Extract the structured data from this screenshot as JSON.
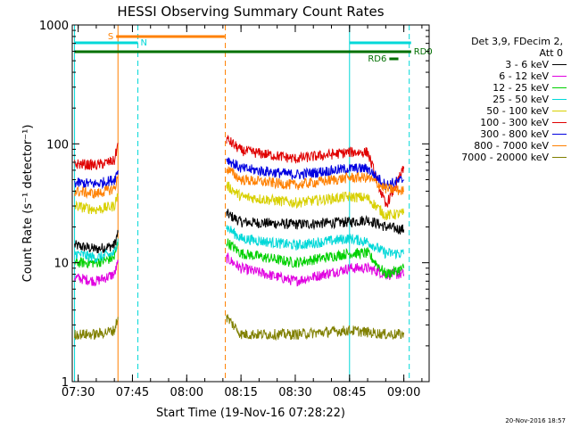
{
  "chart_data": {
    "type": "line",
    "title": "HESSI Observing Summary Count Rates",
    "xlabel": "Start Time (19-Nov-16 07:28:22)",
    "ylabel": "Count Rate (s⁻¹ detector⁻¹)",
    "y_scale": "log",
    "xlim": [
      "07:28:22",
      "09:07:00"
    ],
    "ylim": [
      1,
      1000
    ],
    "x_ticks": [
      "07:30",
      "07:45",
      "08:00",
      "08:15",
      "08:30",
      "08:45",
      "09:00"
    ],
    "y_ticks": [
      "1",
      "10",
      "100",
      "1000"
    ],
    "legend": {
      "header": [
        "Det 3,9, FDecim 2,",
        "Att 0"
      ],
      "placement": "right"
    },
    "series": [
      {
        "name": "3 - 6 keV",
        "color": "#000000",
        "segments": [
          {
            "x": [
              "07:29",
              "07:35",
              "07:40",
              "07:41"
            ],
            "y": [
              14,
              13,
              14,
              18
            ]
          },
          {
            "x": [
              "08:11",
              "08:15",
              "08:30",
              "08:45",
              "08:50",
              "08:55",
              "09:00"
            ],
            "y": [
              26,
              22,
              21,
              22,
              23,
              20,
              19
            ]
          }
        ]
      },
      {
        "name": "6 - 12 keV",
        "color": "#e000e0",
        "segments": [
          {
            "x": [
              "07:29",
              "07:35",
              "07:40",
              "07:41"
            ],
            "y": [
              7.5,
              7,
              8,
              10
            ]
          },
          {
            "x": [
              "08:11",
              "08:15",
              "08:30",
              "08:45",
              "08:50",
              "08:55",
              "09:00"
            ],
            "y": [
              11,
              9,
              7,
              9,
              9,
              8,
              8
            ]
          }
        ]
      },
      {
        "name": "12 - 25 keV",
        "color": "#00d000",
        "segments": [
          {
            "x": [
              "07:29",
              "07:35",
              "07:40",
              "07:41"
            ],
            "y": [
              10,
              10,
              11,
              15
            ]
          },
          {
            "x": [
              "08:11",
              "08:15",
              "08:30",
              "08:45",
              "08:50",
              "08:55",
              "09:00"
            ],
            "y": [
              15,
              12,
              10,
              12,
              12,
              8,
              9
            ]
          }
        ]
      },
      {
        "name": "25 - 50 keV",
        "color": "#00d8d8",
        "segments": [
          {
            "x": [
              "07:29",
              "07:35",
              "07:40",
              "07:41"
            ],
            "y": [
              12,
              11,
              12,
              16
            ]
          },
          {
            "x": [
              "08:11",
              "08:15",
              "08:30",
              "08:45",
              "08:50",
              "08:55",
              "09:00"
            ],
            "y": [
              20,
              16,
              14,
              16,
              15,
              12,
              12
            ]
          }
        ]
      },
      {
        "name": "50 - 100 keV",
        "color": "#d8d000",
        "segments": [
          {
            "x": [
              "07:29",
              "07:35",
              "07:40",
              "07:41"
            ],
            "y": [
              30,
              28,
              30,
              38
            ]
          },
          {
            "x": [
              "08:11",
              "08:15",
              "08:30",
              "08:45",
              "08:50",
              "08:55",
              "09:00"
            ],
            "y": [
              45,
              36,
              32,
              36,
              35,
              25,
              26
            ]
          }
        ]
      },
      {
        "name": "100 - 300 keV",
        "color": "#e00000",
        "segments": [
          {
            "x": [
              "07:29",
              "07:35",
              "07:40",
              "07:41"
            ],
            "y": [
              68,
              66,
              72,
              100
            ]
          },
          {
            "x": [
              "08:11",
              "08:15",
              "08:30",
              "08:45",
              "08:50",
              "08:55",
              "09:00"
            ],
            "y": [
              110,
              88,
              75,
              85,
              85,
              30,
              62
            ]
          }
        ]
      },
      {
        "name": "300 - 800 keV",
        "color": "#0000e0",
        "segments": [
          {
            "x": [
              "07:29",
              "07:35",
              "07:40",
              "07:41"
            ],
            "y": [
              47,
              46,
              50,
              60
            ]
          },
          {
            "x": [
              "08:11",
              "08:15",
              "08:30",
              "08:45",
              "08:50",
              "08:55",
              "09:00"
            ],
            "y": [
              75,
              62,
              55,
              62,
              62,
              45,
              50
            ]
          }
        ]
      },
      {
        "name": "800 - 7000 keV",
        "color": "#ff8000",
        "segments": [
          {
            "x": [
              "07:29",
              "07:35",
              "07:40",
              "07:41"
            ],
            "y": [
              40,
              38,
              42,
              52
            ]
          },
          {
            "x": [
              "08:11",
              "08:15",
              "08:30",
              "08:45",
              "08:50",
              "08:55",
              "09:00"
            ],
            "y": [
              62,
              50,
              45,
              52,
              52,
              42,
              40
            ]
          }
        ]
      },
      {
        "name": "7000 - 20000 keV",
        "color": "#808000",
        "segments": [
          {
            "x": [
              "07:29",
              "07:35",
              "07:40",
              "07:41"
            ],
            "y": [
              2.5,
              2.5,
              2.7,
              3.5
            ]
          },
          {
            "x": [
              "08:11",
              "08:15",
              "08:30",
              "08:45",
              "08:50",
              "08:55",
              "09:00"
            ],
            "y": [
              3.5,
              2.5,
              2.5,
              2.7,
              2.6,
              2.5,
              2.5
            ]
          }
        ]
      }
    ],
    "vlines": [
      {
        "x": "07:29:00",
        "color": "#00d8d8",
        "style": "solid"
      },
      {
        "x": "07:41:00",
        "color": "#ff8000",
        "style": "solid"
      },
      {
        "x": "07:46:30",
        "color": "#00d8d8",
        "style": "dashed"
      },
      {
        "x": "08:10:40",
        "color": "#ff8000",
        "style": "dashed"
      },
      {
        "x": "08:45:00",
        "color": "#00d8d8",
        "style": "solid"
      },
      {
        "x": "09:01:30",
        "color": "#00d8d8",
        "style": "dashed"
      }
    ],
    "bars": [
      {
        "label": "S",
        "x1": "07:40:30",
        "x2": "08:10:30",
        "level": 0,
        "color": "#ff8000",
        "label_side": "left"
      },
      {
        "label": "N",
        "x1": "07:29:00",
        "x2": "07:46:30",
        "level": 1,
        "color": "#00d8d8",
        "label_side": "right"
      },
      {
        "label": "",
        "x1": "08:45:00",
        "x2": "09:02:00",
        "level": 1,
        "color": "#00d8d8",
        "label_side": "right"
      },
      {
        "label": "",
        "x1": "07:29:00",
        "x2": "09:02:00",
        "level": 2,
        "color": "#007000",
        "label_side": "right"
      },
      {
        "label": "RD0",
        "x1": "08:55:00",
        "x2": "09:02:00",
        "level": 2,
        "color": "#007000",
        "label_side": "right"
      },
      {
        "label": "RD6",
        "x1": "08:56:00",
        "x2": "08:58:30",
        "level": 3,
        "color": "#007000",
        "label_side": "left"
      }
    ]
  },
  "timestamp": "20-Nov-2016 18:57"
}
